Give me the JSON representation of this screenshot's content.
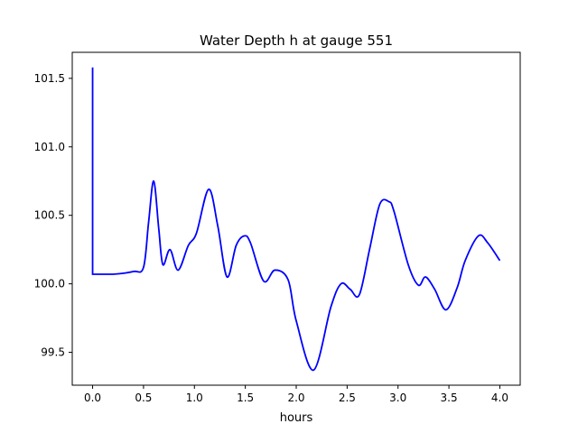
{
  "chart_data": {
    "type": "line",
    "title": "Water Depth h at gauge 551",
    "xlabel": "hours",
    "ylabel": "",
    "xlim": [
      -0.2,
      4.2
    ],
    "ylim": [
      99.26,
      101.69
    ],
    "xticks": [
      0.0,
      0.5,
      1.0,
      1.5,
      2.0,
      2.5,
      3.0,
      3.5,
      4.0
    ],
    "xtick_labels": [
      "0.0",
      "0.5",
      "1.0",
      "1.5",
      "2.0",
      "2.5",
      "3.0",
      "3.5",
      "4.0"
    ],
    "yticks": [
      99.5,
      100.0,
      100.5,
      101.0,
      101.5
    ],
    "ytick_labels": [
      "99.5",
      "100.0",
      "100.5",
      "101.0",
      "101.5"
    ],
    "grid": false,
    "series": [
      {
        "name": "h",
        "color": "#0000ff",
        "x": [
          0.0,
          0.0,
          0.0,
          0.2,
          0.4,
          0.5,
          0.55,
          0.6,
          0.65,
          0.69,
          0.76,
          0.84,
          0.94,
          1.02,
          1.14,
          1.23,
          1.32,
          1.41,
          1.49,
          1.55,
          1.68,
          1.79,
          1.92,
          2.0,
          2.17,
          2.34,
          2.44,
          2.53,
          2.62,
          2.72,
          2.82,
          2.91,
          2.96,
          3.1,
          3.2,
          3.27,
          3.36,
          3.47,
          3.58,
          3.66,
          3.79,
          3.88,
          4.0
        ],
        "y": [
          100.07,
          101.58,
          100.07,
          100.07,
          100.09,
          100.12,
          100.45,
          100.75,
          100.4,
          100.14,
          100.25,
          100.1,
          100.28,
          100.37,
          100.69,
          100.42,
          100.05,
          100.28,
          100.35,
          100.3,
          100.02,
          100.1,
          100.03,
          99.73,
          99.37,
          99.83,
          100.0,
          99.96,
          99.92,
          100.25,
          100.58,
          100.6,
          100.53,
          100.14,
          99.99,
          100.05,
          99.96,
          99.81,
          99.97,
          100.17,
          100.35,
          100.3,
          100.17
        ]
      }
    ]
  }
}
